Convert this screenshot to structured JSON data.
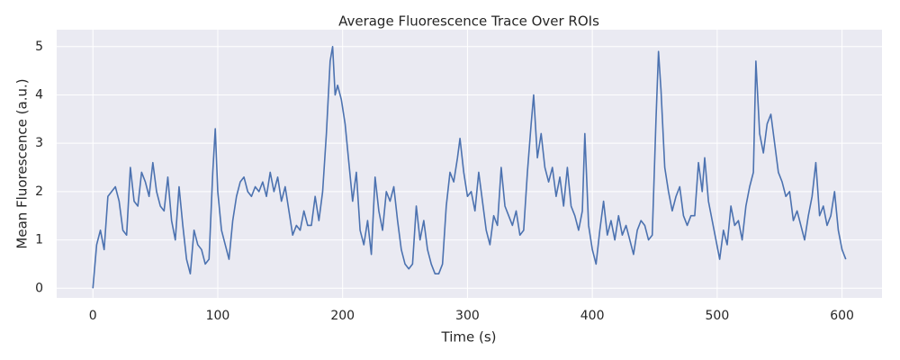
{
  "chart_data": {
    "type": "line",
    "title": "Average Fluorescence Trace Over ROIs",
    "x_label": "Time (s)",
    "y_label": "Mean Fluorescence (a.u.)",
    "xlim": [
      -29,
      632
    ],
    "ylim": [
      -0.2,
      5.35
    ],
    "xticks": [
      0,
      100,
      200,
      300,
      400,
      500,
      600
    ],
    "yticks": [
      0,
      1,
      2,
      3,
      4,
      5
    ],
    "grid": true,
    "x": [
      0,
      3,
      6,
      9,
      12,
      15,
      18,
      21,
      24,
      27,
      30,
      33,
      36,
      39,
      42,
      45,
      48,
      51,
      54,
      57,
      60,
      63,
      66,
      69,
      72,
      75,
      78,
      81,
      84,
      87,
      90,
      93,
      96,
      98,
      100,
      103,
      106,
      109,
      112,
      115,
      118,
      121,
      124,
      127,
      130,
      133,
      136,
      139,
      142,
      145,
      148,
      151,
      154,
      157,
      160,
      163,
      166,
      169,
      172,
      175,
      178,
      181,
      184,
      187,
      190,
      192,
      194,
      196,
      199,
      202,
      205,
      208,
      211,
      214,
      217,
      220,
      223,
      226,
      229,
      232,
      235,
      238,
      241,
      244,
      247,
      250,
      253,
      256,
      259,
      262,
      265,
      268,
      271,
      274,
      277,
      280,
      283,
      286,
      289,
      292,
      294,
      297,
      300,
      303,
      306,
      309,
      312,
      315,
      318,
      321,
      324,
      327,
      330,
      333,
      336,
      339,
      342,
      345,
      348,
      351,
      353,
      356,
      359,
      362,
      365,
      368,
      371,
      374,
      377,
      380,
      383,
      386,
      389,
      392,
      394,
      397,
      400,
      403,
      406,
      409,
      412,
      415,
      418,
      421,
      424,
      427,
      430,
      433,
      436,
      439,
      442,
      445,
      448,
      451,
      453,
      455,
      458,
      461,
      464,
      467,
      470,
      473,
      476,
      479,
      482,
      485,
      488,
      490,
      493,
      496,
      499,
      502,
      505,
      508,
      511,
      514,
      517,
      520,
      523,
      526,
      529,
      531,
      534,
      537,
      540,
      543,
      546,
      549,
      552,
      555,
      558,
      561,
      564,
      567,
      570,
      573,
      576,
      579,
      582,
      585,
      588,
      591,
      594,
      597,
      600,
      603
    ],
    "series": [
      {
        "color": "#4c72b0",
        "values": [
          0,
          0.9,
          1.2,
          0.8,
          1.9,
          2.0,
          2.1,
          1.8,
          1.2,
          1.1,
          2.5,
          1.8,
          1.7,
          2.4,
          2.2,
          1.9,
          2.6,
          2.0,
          1.7,
          1.6,
          2.3,
          1.4,
          1.0,
          2.1,
          1.3,
          0.6,
          0.3,
          1.2,
          0.9,
          0.8,
          0.5,
          0.6,
          2.4,
          3.3,
          2.0,
          1.2,
          0.9,
          0.6,
          1.4,
          1.9,
          2.2,
          2.3,
          2.0,
          1.9,
          2.1,
          2.0,
          2.2,
          1.9,
          2.4,
          2.0,
          2.3,
          1.8,
          2.1,
          1.6,
          1.1,
          1.3,
          1.2,
          1.6,
          1.3,
          1.3,
          1.9,
          1.4,
          2.0,
          3.2,
          4.7,
          5.0,
          4.0,
          4.2,
          3.9,
          3.4,
          2.6,
          1.8,
          2.4,
          1.2,
          0.9,
          1.4,
          0.7,
          2.3,
          1.6,
          1.2,
          2.0,
          1.8,
          2.1,
          1.4,
          0.8,
          0.5,
          0.4,
          0.5,
          1.7,
          1.0,
          1.4,
          0.8,
          0.5,
          0.3,
          0.3,
          0.5,
          1.7,
          2.4,
          2.2,
          2.7,
          3.1,
          2.4,
          1.9,
          2.0,
          1.6,
          2.4,
          1.8,
          1.2,
          0.9,
          1.5,
          1.3,
          2.5,
          1.7,
          1.5,
          1.3,
          1.6,
          1.1,
          1.2,
          2.4,
          3.4,
          4.0,
          2.7,
          3.2,
          2.5,
          2.2,
          2.5,
          1.9,
          2.3,
          1.7,
          2.5,
          1.7,
          1.5,
          1.2,
          1.6,
          3.2,
          1.3,
          0.8,
          0.5,
          1.2,
          1.8,
          1.1,
          1.4,
          1.0,
          1.5,
          1.1,
          1.3,
          1.0,
          0.7,
          1.2,
          1.4,
          1.3,
          1.0,
          1.1,
          3.5,
          4.9,
          4.1,
          2.5,
          2.0,
          1.6,
          1.9,
          2.1,
          1.5,
          1.3,
          1.5,
          1.5,
          2.6,
          2.0,
          2.7,
          1.8,
          1.4,
          1.0,
          0.6,
          1.2,
          0.9,
          1.7,
          1.3,
          1.4,
          1.0,
          1.7,
          2.1,
          2.4,
          4.7,
          3.2,
          2.8,
          3.4,
          3.6,
          3.0,
          2.4,
          2.2,
          1.9,
          2.0,
          1.4,
          1.6,
          1.3,
          1.0,
          1.5,
          1.9,
          2.6,
          1.5,
          1.7,
          1.3,
          1.5,
          2.0,
          1.2,
          0.8,
          0.6
        ]
      }
    ]
  }
}
